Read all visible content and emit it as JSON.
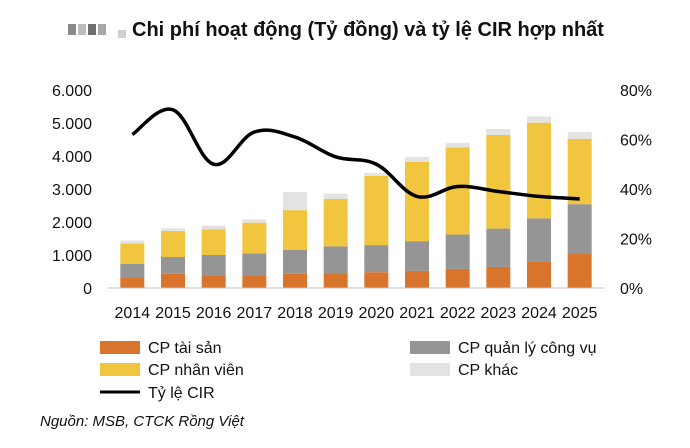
{
  "chart_data": {
    "type": "bar",
    "title": "Chi phí hoạt động (Tỷ đồng) và tỷ lệ CIR hợp nhất",
    "categories": [
      "2014",
      "2015",
      "2016",
      "2017",
      "2018",
      "2019",
      "2020",
      "2021",
      "2022",
      "2023",
      "2024",
      "2025"
    ],
    "stacked": true,
    "y_left": {
      "min": 0,
      "max": 6000,
      "ticks": [
        "0",
        "1.000",
        "2.000",
        "3.000",
        "4.000",
        "5.000",
        "6.000"
      ],
      "tick_values": [
        0,
        1000,
        2000,
        3000,
        4000,
        5000,
        6000
      ]
    },
    "y_right": {
      "min": 0,
      "max": 80,
      "ticks": [
        "0%",
        "20%",
        "40%",
        "60%",
        "80%"
      ],
      "tick_values": [
        0,
        20,
        40,
        60,
        80
      ]
    },
    "series": [
      {
        "name": "CP tài sản",
        "type": "bar",
        "color": "#d8742c",
        "values": [
          330,
          430,
          390,
          380,
          430,
          440,
          480,
          520,
          580,
          640,
          790,
          1030
        ]
      },
      {
        "name": "CP quản lý công vụ",
        "type": "bar",
        "color": "#959595",
        "values": [
          400,
          510,
          610,
          670,
          730,
          820,
          820,
          900,
          1040,
          1160,
          1320,
          1510
        ]
      },
      {
        "name": "CP nhân viên",
        "type": "bar",
        "color": "#f2c53f",
        "values": [
          620,
          790,
          780,
          930,
          1200,
          1440,
          2100,
          2400,
          2640,
          2840,
          2900,
          1980
        ]
      },
      {
        "name": "CP khác",
        "type": "bar",
        "color": "#e3e3e3",
        "values": [
          90,
          80,
          110,
          100,
          550,
          160,
          90,
          150,
          140,
          180,
          190,
          210
        ]
      },
      {
        "name": "Tỷ lệ CIR",
        "type": "line",
        "axis": "right",
        "color": "#000000",
        "values": [
          62,
          72,
          50,
          63,
          61,
          53,
          50,
          37,
          41,
          39,
          37,
          36
        ]
      }
    ],
    "legend_position": "bottom",
    "grid": false
  },
  "source": "Nguồn: MSB, CTCK Rồng Việt"
}
